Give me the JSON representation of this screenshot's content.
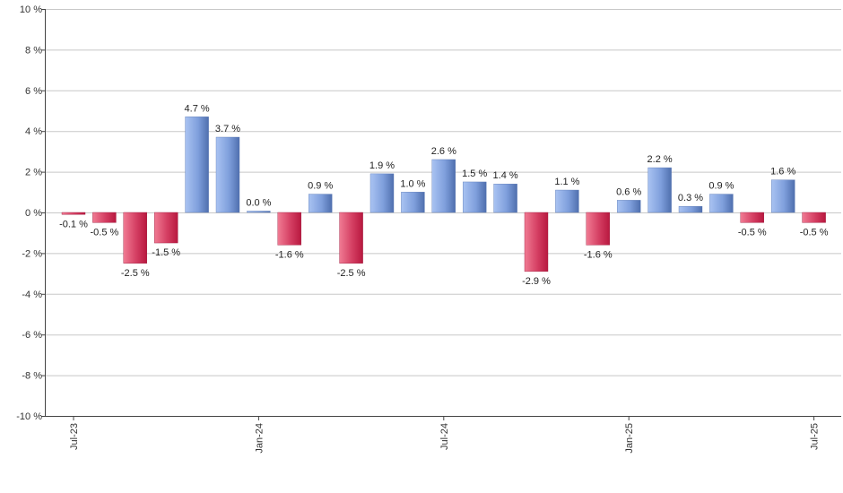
{
  "chart_data": {
    "type": "bar",
    "title": "",
    "xlabel": "",
    "ylabel": "",
    "ylim": [
      -10,
      10
    ],
    "yticks": [
      10,
      8,
      6,
      4,
      2,
      0,
      -2,
      -4,
      -6,
      -8,
      -10
    ],
    "ytick_labels": [
      "10 %",
      "8 %",
      "6 %",
      "4 %",
      "2 %",
      "0 %",
      "-2 %",
      "-4 %",
      "-6 %",
      "-8 %",
      "-10 %"
    ],
    "xtick_labels": [
      {
        "label": "Jul-23",
        "index": 0
      },
      {
        "label": "Jan-24",
        "index": 6
      },
      {
        "label": "Jul-24",
        "index": 12
      },
      {
        "label": "Jan-25",
        "index": 18
      },
      {
        "label": "Jul-25",
        "index": 24
      }
    ],
    "values": [
      -0.1,
      -0.5,
      -2.5,
      -1.5,
      4.7,
      3.7,
      0.0,
      -1.6,
      0.9,
      -2.5,
      1.9,
      1.0,
      2.6,
      1.5,
      1.4,
      -2.9,
      1.1,
      -1.6,
      0.6,
      2.2,
      0.3,
      0.9,
      -0.5,
      1.6,
      -0.5
    ],
    "value_labels": [
      "-0.1 %",
      "-0.5 %",
      "-2.5 %",
      "-1.5 %",
      "4.7 %",
      "3.7 %",
      "0.0 %",
      "-1.6 %",
      "0.9 %",
      "-2.5 %",
      "1.9 %",
      "1.0 %",
      "2.6 %",
      "1.5 %",
      "1.4 %",
      "-2.9 %",
      "1.1 %",
      "-1.6 %",
      "0.6 %",
      "2.2 %",
      "0.3 %",
      "0.9 %",
      "-0.5 %",
      "1.6 %",
      "-0.5 %"
    ],
    "grid": true,
    "legend": "none",
    "colors": {
      "positive_light": "#a9c3f2",
      "positive_dark": "#4f6fae",
      "negative_light": "#f07b93",
      "negative_dark": "#b8183f",
      "grid": "#c8c8c8",
      "axis": "#444444"
    }
  }
}
